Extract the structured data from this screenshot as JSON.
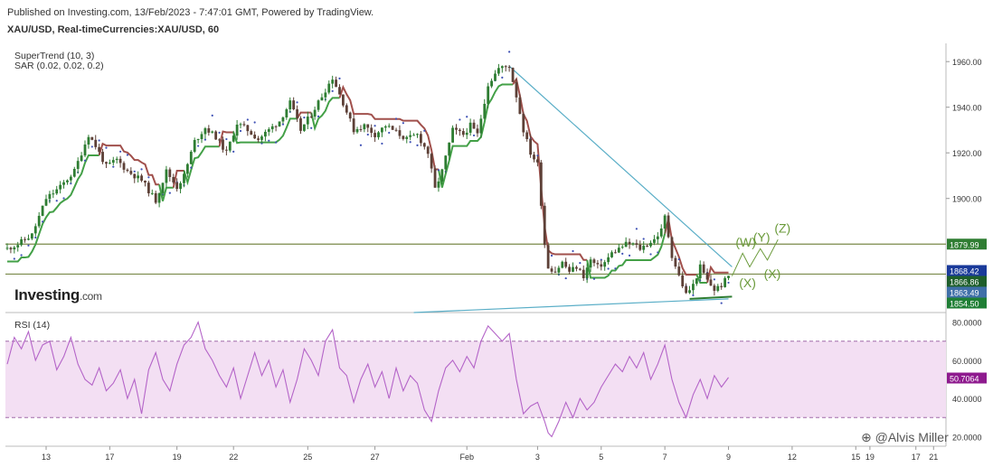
{
  "header": {
    "published": "Published on Investing.com, 13/Feb/2023 - 7:47:01 GMT, Powered by TradingView.",
    "symbol": "XAU/USD, Real-timeCurrencies:XAU/USD, 60"
  },
  "indicators": {
    "supertrend": "SuperTrend (10, 3)",
    "sar": "SAR (0.02, 0.02, 0.2)",
    "rsi": "RSI (14)"
  },
  "logo": {
    "name": "Investing",
    "suffix": ".com"
  },
  "watermark": "@Alvis Miller",
  "colors": {
    "up_candle": "#2e7d32",
    "down_candle": "#5d4037",
    "supertrend_up": "#43a047",
    "supertrend_down": "#a1504c",
    "sar_dots": "#3f51b5",
    "trendline": "#5aaec7",
    "horizontal_lines": "#7a8a4a",
    "rsi_line": "#b464c8",
    "rsi_band": "#f3dff3",
    "wave_labels": "#6a9a3a"
  },
  "chart_data": [
    {
      "type": "candlestick",
      "title": "XAU/USD, Real-timeCurrencies:XAU/USD, 60",
      "x_ticks": [
        "13",
        "17",
        "19",
        "22",
        "25",
        "27",
        "Feb",
        "3",
        "5",
        "7",
        "9",
        "12",
        "15",
        "17",
        "19",
        "21"
      ],
      "y_ticks": [
        "1960.00",
        "1940.00",
        "1920.00",
        "1900.00"
      ],
      "ylim": [
        1850,
        1968
      ],
      "price_labels": [
        {
          "value": 1879.99,
          "label": "1879.99",
          "color": "#2f7d32"
        },
        {
          "value": 1868.42,
          "label": "1868.42",
          "color": "#1a3a9a"
        },
        {
          "value": 1866.86,
          "label": "1866.86",
          "color": "#1e5e2a"
        },
        {
          "value": 1863.49,
          "label": "1863.49",
          "color": "#3f6fa8"
        },
        {
          "value": 1854.5,
          "label": "1854.50",
          "color": "#1e7e34"
        }
      ],
      "horizontal_lines": [
        1879.99,
        1866.86
      ],
      "wave_labels": [
        "(W)",
        "(Y)",
        "(Z)",
        "(X)",
        "(X)"
      ],
      "price_path": [
        [
          0,
          1878
        ],
        [
          3,
          1880
        ],
        [
          7,
          1884
        ],
        [
          11,
          1900
        ],
        [
          15,
          1905
        ],
        [
          19,
          1912
        ],
        [
          23,
          1928
        ],
        [
          25,
          1923
        ],
        [
          28,
          1914
        ],
        [
          31,
          1917
        ],
        [
          34,
          1912
        ],
        [
          38,
          1908
        ],
        [
          42,
          1899
        ],
        [
          45,
          1912
        ],
        [
          48,
          1905
        ],
        [
          50,
          1910
        ],
        [
          53,
          1925
        ],
        [
          56,
          1931
        ],
        [
          59,
          1927
        ],
        [
          62,
          1920
        ],
        [
          65,
          1933
        ],
        [
          68,
          1930
        ],
        [
          71,
          1926
        ],
        [
          74,
          1930
        ],
        [
          77,
          1934
        ],
        [
          80,
          1942
        ],
        [
          83,
          1930
        ],
        [
          86,
          1937
        ],
        [
          89,
          1945
        ],
        [
          92,
          1953
        ],
        [
          95,
          1942
        ],
        [
          98,
          1930
        ],
        [
          101,
          1932
        ],
        [
          104,
          1928
        ],
        [
          107,
          1932
        ],
        [
          110,
          1929
        ],
        [
          113,
          1926
        ],
        [
          116,
          1928
        ],
        [
          119,
          1920
        ],
        [
          121,
          1904
        ],
        [
          123,
          1912
        ],
        [
          126,
          1930
        ],
        [
          129,
          1928
        ],
        [
          131,
          1932
        ],
        [
          133,
          1928
        ],
        [
          136,
          1950
        ],
        [
          139,
          1957
        ],
        [
          142,
          1958
        ],
        [
          144,
          1945
        ],
        [
          146,
          1930
        ],
        [
          148,
          1920
        ],
        [
          150,
          1915
        ],
        [
          151,
          1898
        ],
        [
          152,
          1880
        ],
        [
          153,
          1870
        ],
        [
          155,
          1868
        ],
        [
          157,
          1872
        ],
        [
          159,
          1868
        ],
        [
          161,
          1870
        ],
        [
          163,
          1866
        ],
        [
          165,
          1873
        ],
        [
          167,
          1870
        ],
        [
          169,
          1872
        ],
        [
          171,
          1876
        ],
        [
          173,
          1878
        ],
        [
          175,
          1880
        ],
        [
          177,
          1880
        ],
        [
          179,
          1878
        ],
        [
          181,
          1880
        ],
        [
          183,
          1882
        ],
        [
          185,
          1886
        ],
        [
          186,
          1892
        ],
        [
          188,
          1875
        ],
        [
          190,
          1866
        ],
        [
          192,
          1858
        ],
        [
          194,
          1862
        ],
        [
          196,
          1870
        ],
        [
          198,
          1864
        ],
        [
          200,
          1860
        ],
        [
          202,
          1862
        ],
        [
          204,
          1866
        ]
      ]
    },
    {
      "type": "line",
      "title": "RSI (14)",
      "y_ticks": [
        "80.0000",
        "60.0000",
        "40.0000",
        "20.0000"
      ],
      "ylim": [
        15,
        85
      ],
      "band": [
        30,
        70
      ],
      "last_label": {
        "value": 50.7064,
        "label": "50.7064",
        "color": "#8e1a8e"
      },
      "series": [
        {
          "values": [
            [
              0,
              58
            ],
            [
              2,
              72
            ],
            [
              4,
              66
            ],
            [
              6,
              75
            ],
            [
              8,
              60
            ],
            [
              10,
              68
            ],
            [
              12,
              70
            ],
            [
              14,
              55
            ],
            [
              16,
              62
            ],
            [
              18,
              72
            ],
            [
              20,
              58
            ],
            [
              22,
              50
            ],
            [
              24,
              47
            ],
            [
              26,
              56
            ],
            [
              28,
              44
            ],
            [
              30,
              48
            ],
            [
              32,
              55
            ],
            [
              34,
              40
            ],
            [
              36,
              50
            ],
            [
              38,
              32
            ],
            [
              40,
              55
            ],
            [
              42,
              64
            ],
            [
              44,
              50
            ],
            [
              46,
              44
            ],
            [
              48,
              58
            ],
            [
              50,
              68
            ],
            [
              52,
              72
            ],
            [
              54,
              80
            ],
            [
              56,
              66
            ],
            [
              58,
              60
            ],
            [
              60,
              52
            ],
            [
              62,
              46
            ],
            [
              64,
              56
            ],
            [
              66,
              40
            ],
            [
              68,
              52
            ],
            [
              70,
              64
            ],
            [
              72,
              52
            ],
            [
              74,
              60
            ],
            [
              76,
              46
            ],
            [
              78,
              55
            ],
            [
              80,
              38
            ],
            [
              82,
              50
            ],
            [
              84,
              66
            ],
            [
              86,
              60
            ],
            [
              88,
              52
            ],
            [
              90,
              70
            ],
            [
              92,
              76
            ],
            [
              94,
              56
            ],
            [
              96,
              52
            ],
            [
              98,
              38
            ],
            [
              100,
              50
            ],
            [
              102,
              58
            ],
            [
              104,
              46
            ],
            [
              106,
              54
            ],
            [
              108,
              40
            ],
            [
              110,
              56
            ],
            [
              112,
              44
            ],
            [
              114,
              52
            ],
            [
              116,
              48
            ],
            [
              118,
              34
            ],
            [
              120,
              28
            ],
            [
              122,
              44
            ],
            [
              124,
              56
            ],
            [
              126,
              60
            ],
            [
              128,
              54
            ],
            [
              130,
              62
            ],
            [
              132,
              56
            ],
            [
              134,
              70
            ],
            [
              136,
              78
            ],
            [
              138,
              74
            ],
            [
              140,
              70
            ],
            [
              142,
              74
            ],
            [
              144,
              50
            ],
            [
              146,
              32
            ],
            [
              148,
              36
            ],
            [
              150,
              38
            ],
            [
              152,
              28
            ],
            [
              153,
              22
            ],
            [
              154,
              20
            ],
            [
              156,
              28
            ],
            [
              158,
              38
            ],
            [
              160,
              30
            ],
            [
              162,
              40
            ],
            [
              164,
              34
            ],
            [
              166,
              38
            ],
            [
              168,
              46
            ],
            [
              170,
              52
            ],
            [
              172,
              58
            ],
            [
              174,
              54
            ],
            [
              176,
              62
            ],
            [
              178,
              56
            ],
            [
              180,
              64
            ],
            [
              182,
              50
            ],
            [
              184,
              58
            ],
            [
              186,
              68
            ],
            [
              188,
              50
            ],
            [
              190,
              38
            ],
            [
              192,
              30
            ],
            [
              194,
              42
            ],
            [
              196,
              50
            ],
            [
              198,
              40
            ],
            [
              200,
              52
            ],
            [
              202,
              46
            ],
            [
              204,
              51
            ]
          ]
        }
      ]
    }
  ]
}
